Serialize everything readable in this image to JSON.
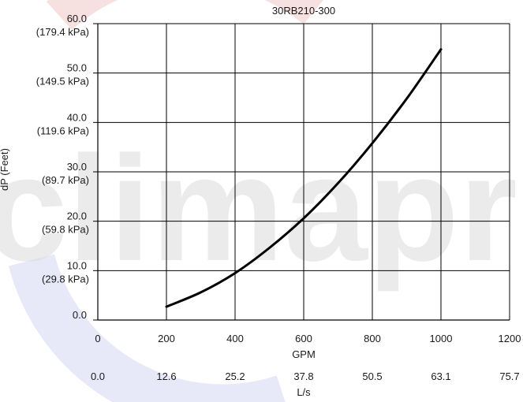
{
  "chart_data": {
    "type": "line",
    "title": "30RB210-300",
    "xlabel": "GPM",
    "ylabel": "dP (Feet)",
    "secondary_xlabel": "L/s",
    "xlim": [
      0,
      1200
    ],
    "ylim": [
      0,
      60
    ],
    "grid": true,
    "x_ticks": [
      "0",
      "200",
      "400",
      "600",
      "800",
      "1000",
      "1200"
    ],
    "secondary_x_ticks": [
      "0.0",
      "12.6",
      "25.2",
      "37.8",
      "50.5",
      "63.1",
      "75.7"
    ],
    "y_ticks": [
      {
        "value": "0.0",
        "sub": ""
      },
      {
        "value": "10.0",
        "sub": "(29.8 kPa)"
      },
      {
        "value": "20.0",
        "sub": "(59.8 kPa)"
      },
      {
        "value": "30.0",
        "sub": "(89.7 kPa)"
      },
      {
        "value": "40.0",
        "sub": "(119.6 kPa)"
      },
      {
        "value": "50.0",
        "sub": "(149.5 kPa)"
      },
      {
        "value": "60.0",
        "sub": "(179.4 kPa)"
      }
    ],
    "series": [
      {
        "color": "#000000",
        "x": [
          200,
          300,
          400,
          500,
          600,
          700,
          800,
          900,
          1000
        ],
        "y": [
          2.7,
          5.6,
          9.5,
          14.6,
          20.6,
          27.7,
          35.8,
          44.8,
          54.8
        ]
      }
    ]
  },
  "colors": {
    "watermark_red": "#e8aeb0",
    "watermark_blue": "#b9bde8",
    "watermark_text": "#d9d9d9"
  },
  "watermark": "climaproyectos"
}
